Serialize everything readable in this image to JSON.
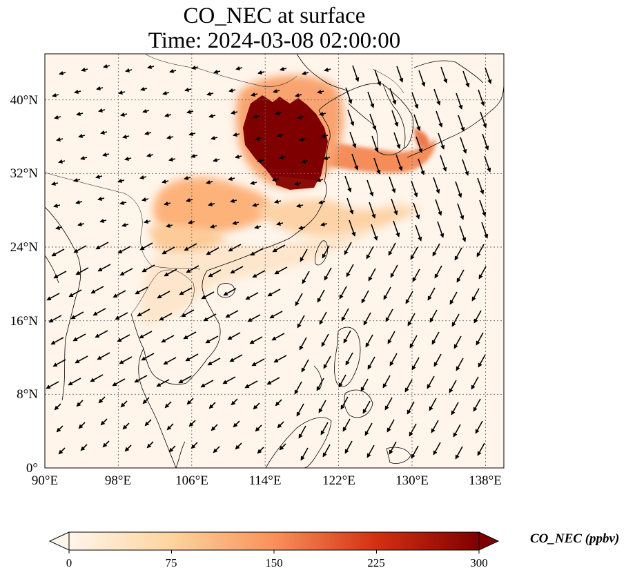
{
  "title_line1": "CO_NEC at surface",
  "title_line2": "Time: 2024-03-08 02:00:00",
  "map": {
    "lon_range": [
      90,
      140
    ],
    "lat_range": [
      0,
      45
    ],
    "lon_ticks": [
      {
        "value": 90,
        "label": "90°E"
      },
      {
        "value": 98,
        "label": "98°E"
      },
      {
        "value": 106,
        "label": "106°E"
      },
      {
        "value": 114,
        "label": "114°E"
      },
      {
        "value": 122,
        "label": "122°E"
      },
      {
        "value": 130,
        "label": "130°E"
      },
      {
        "value": 138,
        "label": "138°E"
      }
    ],
    "lat_ticks": [
      {
        "value": 0,
        "label": "0°"
      },
      {
        "value": 8,
        "label": "8°N"
      },
      {
        "value": 16,
        "label": "16°N"
      },
      {
        "value": 24,
        "label": "24°N"
      },
      {
        "value": 32,
        "label": "32°N"
      },
      {
        "value": 40,
        "label": "40°N"
      }
    ],
    "gridlines": true,
    "vector_field": "surface wind arrows"
  },
  "colorbar": {
    "label": "CO_NEC (ppbv)",
    "min": 0,
    "max": 300,
    "extend": "both",
    "ticks": [
      "0",
      "75",
      "150",
      "225",
      "300"
    ],
    "colormap": [
      "#fff5eb",
      "#fdd49e",
      "#fdae6b",
      "#f16913",
      "#d94801",
      "#a63603",
      "#7f0000"
    ]
  },
  "plumes": [
    {
      "region": "North China Plain",
      "level": "very high (>300 ppbv)"
    },
    {
      "region": "Sichuan Basin / South China",
      "level": "moderate (~100 ppbv)"
    },
    {
      "region": "Yellow Sea to Japan",
      "level": "high (~200 ppbv)"
    },
    {
      "region": "Indochina",
      "level": "low-moderate (~60 ppbv)"
    }
  ]
}
